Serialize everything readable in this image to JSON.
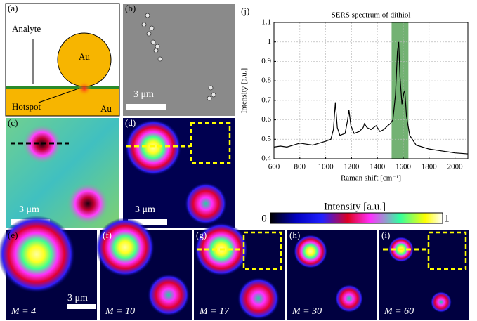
{
  "chart_data": {
    "type": "line",
    "panel_label": "(j)",
    "title": "SERS spectrum of dithiol",
    "x_label": "Raman shift [cm⁻¹]",
    "y_label": "Intensity [a.u.]",
    "x": [
      600,
      650,
      700,
      750,
      800,
      850,
      900,
      950,
      1000,
      1040,
      1060,
      1075,
      1090,
      1110,
      1150,
      1170,
      1180,
      1195,
      1220,
      1260,
      1290,
      1300,
      1320,
      1350,
      1390,
      1420,
      1450,
      1480,
      1500,
      1520,
      1540,
      1555,
      1565,
      1575,
      1590,
      1605,
      1612,
      1625,
      1650,
      1700,
      1800,
      1900,
      2000,
      2100
    ],
    "values": [
      0.46,
      0.465,
      0.46,
      0.47,
      0.48,
      0.475,
      0.47,
      0.48,
      0.49,
      0.5,
      0.55,
      0.69,
      0.56,
      0.52,
      0.53,
      0.6,
      0.65,
      0.57,
      0.53,
      0.54,
      0.56,
      0.58,
      0.56,
      0.55,
      0.57,
      0.54,
      0.55,
      0.57,
      0.58,
      0.6,
      0.73,
      0.95,
      1.0,
      0.82,
      0.68,
      0.74,
      0.75,
      0.62,
      0.52,
      0.47,
      0.45,
      0.44,
      0.43,
      0.425
    ],
    "color": "#000000",
    "highlight": [
      1510,
      1640
    ],
    "highlight_color": "#5aa55a",
    "xlim": [
      600,
      2100
    ],
    "ylim": [
      0.4,
      1.1
    ],
    "xticks": [
      600,
      800,
      1000,
      1200,
      1400,
      1600,
      1800,
      2000
    ],
    "yticks": [
      0.4,
      0.5,
      0.6,
      0.7,
      0.8,
      0.9,
      1,
      1.1
    ],
    "grid": true
  },
  "figure": {
    "a": {
      "label": "(a)",
      "analyte": "Analyte",
      "sphere": "Au",
      "substrate": "Au",
      "hotspot": "Hotspot"
    },
    "b": {
      "label": "(b)",
      "scale": "3 μm"
    },
    "c": {
      "label": "(c)",
      "scale": "3 μm"
    },
    "d": {
      "label": "(d)",
      "scale": "3 μm"
    },
    "colorbar": {
      "title": "Intensity [a.u.]",
      "ticks": [
        0,
        1
      ]
    },
    "e": {
      "label": "(e)",
      "scale": "3 μm",
      "m": "M = 4"
    },
    "f": {
      "label": "(f)",
      "m": "M = 10"
    },
    "g": {
      "label": "(g)",
      "m": "M = 17"
    },
    "h": {
      "label": "(h)",
      "m": "M = 30"
    },
    "i": {
      "label": "(i)",
      "m": "M = 60"
    }
  }
}
